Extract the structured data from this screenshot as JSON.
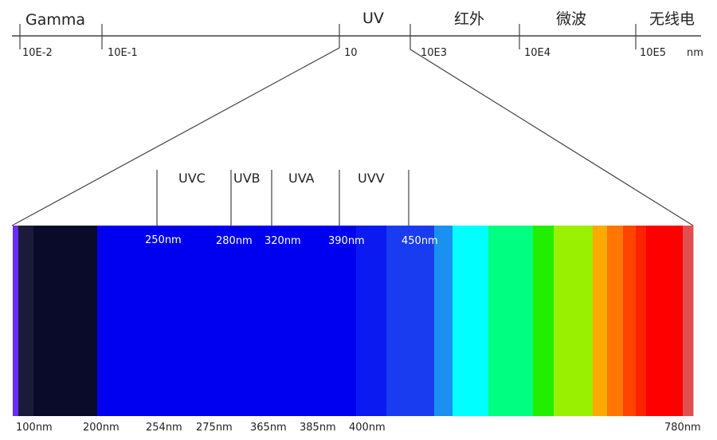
{
  "top_axis": {
    "regions": [
      "Gamma",
      "UV",
      "红外",
      "微波",
      "无线电"
    ],
    "ticks": [
      "10E-2",
      "10E-1",
      "10",
      "10E3",
      "10E4",
      "10E5"
    ],
    "unit": "nm"
  },
  "uv_bands": [
    "UVC",
    "UVB",
    "UVA",
    "UVV"
  ],
  "band_boundaries": [
    "250nm",
    "280nm",
    "320nm",
    "390nm",
    "450nm"
  ],
  "bottom_labels": [
    "100nm",
    "200nm",
    "254nm",
    "275nm",
    "365nm",
    "385nm",
    "400nm",
    "780nm"
  ],
  "spectrum_colors": [
    "#6a2bff",
    "#1a1a3a",
    "#0a0a2a",
    "#0000f0",
    "#0a1af0",
    "#1a3cf0",
    "#1a90f0",
    "#00ffff",
    "#00ff80",
    "#22ee00",
    "#99f000",
    "#ffaa00",
    "#ff7700",
    "#ff4400",
    "#ff2200",
    "#ff0000",
    "#e05050"
  ]
}
